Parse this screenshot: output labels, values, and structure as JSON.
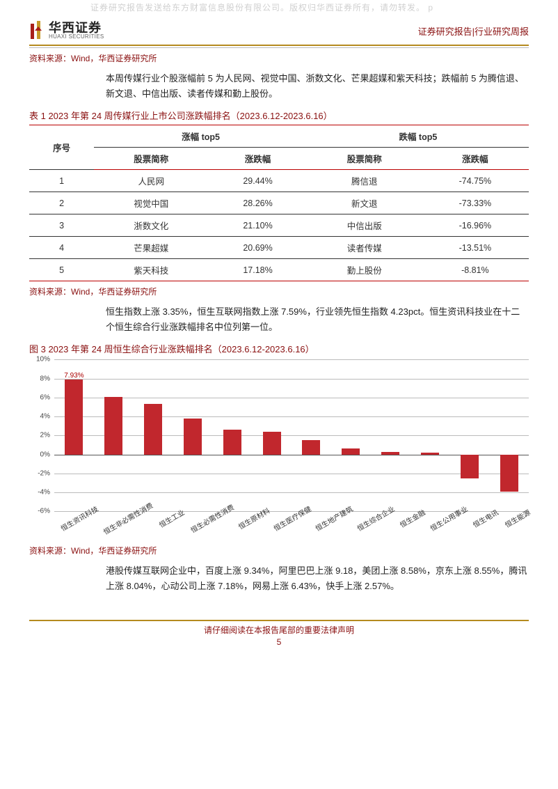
{
  "colors": {
    "brand_red": "#a01414",
    "gold": "#b58a1e",
    "bar": "#c1272d",
    "text": "#333333",
    "grid": "#bbbbbb"
  },
  "watermark": "证券研究报告发送给东方财富信息股份有限公司。版权归华西证券所有，请勿转发。  p",
  "logo": {
    "cn": "华西证券",
    "en": "HUAXI SECURITIES"
  },
  "doc_type": "证券研究报告|行业研究周报",
  "source_label": "资料来源：Wind，华西证券研究所",
  "para1": "本周传媒行业个股涨幅前 5 为人民网、视觉中国、浙数文化、芒果超媒和紫天科技；跌幅前 5 为腾信退、新文退、中信出版、读者传媒和勤上股份。",
  "table1": {
    "caption": "表 1 2023 年第 24 周传媒行业上市公司涨跌幅排名（2023.6.12-2023.6.16）",
    "col_index": "序号",
    "group_up": "涨幅 top5",
    "group_down": "跌幅 top5",
    "col_name": "股票简称",
    "col_chg": "涨跌幅",
    "rows": [
      {
        "idx": "1",
        "up_name": "人民网",
        "up_chg": "29.44%",
        "dn_name": "腾信退",
        "dn_chg": "-74.75%"
      },
      {
        "idx": "2",
        "up_name": "视觉中国",
        "up_chg": "28.26%",
        "dn_name": "新文退",
        "dn_chg": "-73.33%"
      },
      {
        "idx": "3",
        "up_name": "浙数文化",
        "up_chg": "21.10%",
        "dn_name": "中信出版",
        "dn_chg": "-16.96%"
      },
      {
        "idx": "4",
        "up_name": "芒果超媒",
        "up_chg": "20.69%",
        "dn_name": "读者传媒",
        "dn_chg": "-13.51%"
      },
      {
        "idx": "5",
        "up_name": "紫天科技",
        "up_chg": "17.18%",
        "dn_name": "勤上股份",
        "dn_chg": "-8.81%"
      }
    ]
  },
  "para2": "恒生指数上涨 3.35%，恒生互联网指数上涨 7.59%，行业领先恒生指数 4.23pct。恒生资讯科技业在十二个恒生综合行业涨跌幅排名中位列第一位。",
  "chart": {
    "caption": "图 3 2023 年第 24 周恒生综合行业涨跌幅排名（2023.6.12-2023.6.16）",
    "type": "bar",
    "y_min": -6,
    "y_max": 10,
    "y_step": 2,
    "unit": "%",
    "bar_color": "#c1272d",
    "top_label": "7.93%",
    "categories": [
      "恒生资讯科技",
      "恒生非必需性消费",
      "恒生工业",
      "恒生必需性消费",
      "恒生原材料",
      "恒生医疗保健",
      "恒生地产建筑",
      "恒生综合企业",
      "恒生金融",
      "恒生公用事业",
      "恒生电讯",
      "恒生能源"
    ],
    "values": [
      7.93,
      6.1,
      5.3,
      3.8,
      2.6,
      2.4,
      1.5,
      0.6,
      0.3,
      0.2,
      -2.5,
      -3.9
    ]
  },
  "para3": "港股传媒互联网企业中，百度上涨 9.34%，阿里巴巴上涨 9.18，美团上涨 8.58%，京东上涨 8.55%，腾讯上涨 8.04%，心动公司上涨 7.18%，网易上涨 6.43%，快手上涨 2.57%。",
  "footer": "请仔细阅读在本报告尾部的重要法律声明",
  "page_num": "5"
}
